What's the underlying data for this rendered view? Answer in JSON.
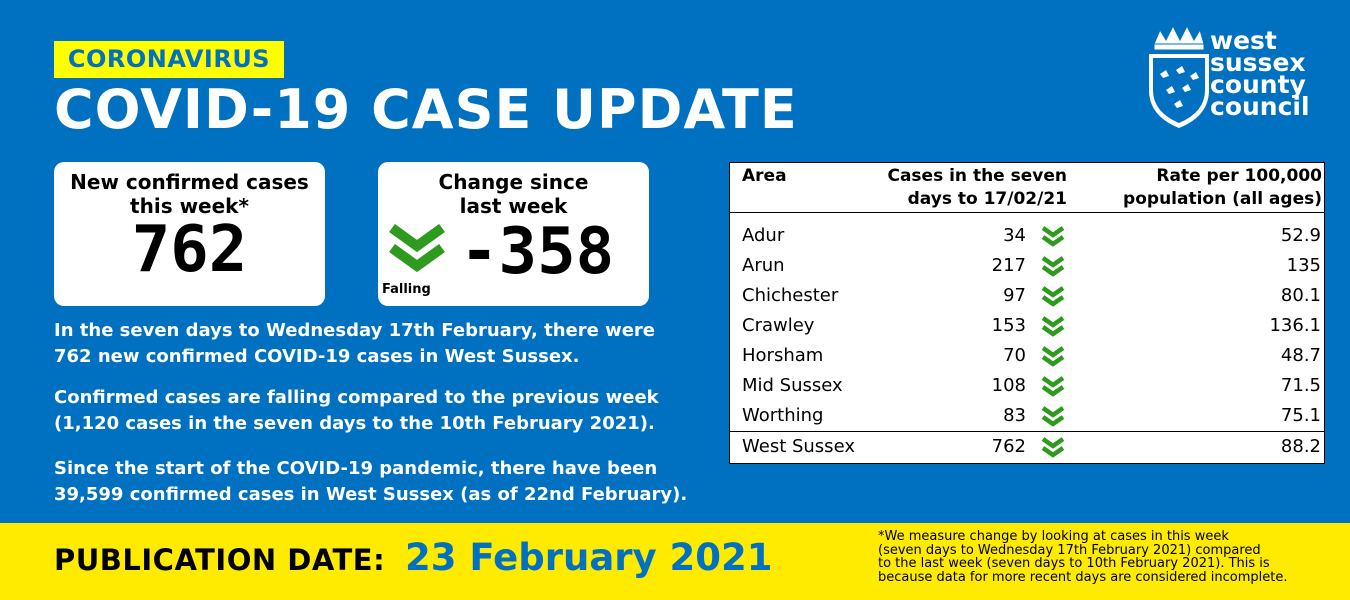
{
  "header": {
    "tag": "CORONAVIRUS",
    "title": "COVID-19 CASE UPDATE"
  },
  "logo": {
    "lines": [
      "west",
      "sussex",
      "county",
      "council"
    ],
    "icon": "crown-shield-icon"
  },
  "cards": {
    "new_cases": {
      "label_line1": "New confirmed cases",
      "label_line2": "this week*",
      "value": "762"
    },
    "change": {
      "label_line1": "Change since",
      "label_line2": "last week",
      "value": "-358",
      "trend": "Falling",
      "icon": "double-chevron-down-icon"
    }
  },
  "paragraphs": {
    "p1_line1": "In the seven days to Wednesday 17th February,  there were",
    "p1_line2": "762 new confirmed COVID-19 cases in West Sussex.",
    "p2_line1": "Confirmed cases are falling compared to the previous week",
    "p2_line2": "(1,120 cases in the seven days to the 10th February 2021).",
    "p3_line1": "Since the start of the COVID-19 pandemic, there have been",
    "p3_line2": "39,599 confirmed cases in West Sussex (as of 22nd February)."
  },
  "table": {
    "headers": {
      "area": "Area",
      "cases_line1": "Cases in the seven",
      "cases_line2": "days to 17/02/21",
      "rate_line1": "Rate per 100,000",
      "rate_line2": "population (all ages)"
    },
    "rows": [
      {
        "area": "Adur",
        "cases": "34",
        "rate": "52.9"
      },
      {
        "area": "Arun",
        "cases": "217",
        "rate": "135"
      },
      {
        "area": "Chichester",
        "cases": "97",
        "rate": "80.1"
      },
      {
        "area": "Crawley",
        "cases": "153",
        "rate": "136.1"
      },
      {
        "area": "Horsham",
        "cases": "70",
        "rate": "48.7"
      },
      {
        "area": "Mid Sussex",
        "cases": "108",
        "rate": "71.5"
      },
      {
        "area": "Worthing",
        "cases": "83",
        "rate": "75.1"
      }
    ],
    "total": {
      "area": "West Sussex",
      "cases": "762",
      "rate": "88.2"
    },
    "trend_icon": "double-chevron-down-icon"
  },
  "footer": {
    "label": "PUBLICATION DATE:",
    "date": "23 February 2021",
    "note_line1": "*We measure change by looking at cases in this week",
    "note_line2": "(seven days to Wednesday 17th February 2021) compared",
    "note_line3": "to the last week (seven days to 10th February 2021). This is",
    "note_line4": "because data for more recent days are considered incomplete."
  },
  "colors": {
    "background": "#0070C0",
    "accent_yellow": "#FFFF00",
    "footer_yellow": "#FFEB00",
    "trend_green": "#2E9A1E"
  }
}
